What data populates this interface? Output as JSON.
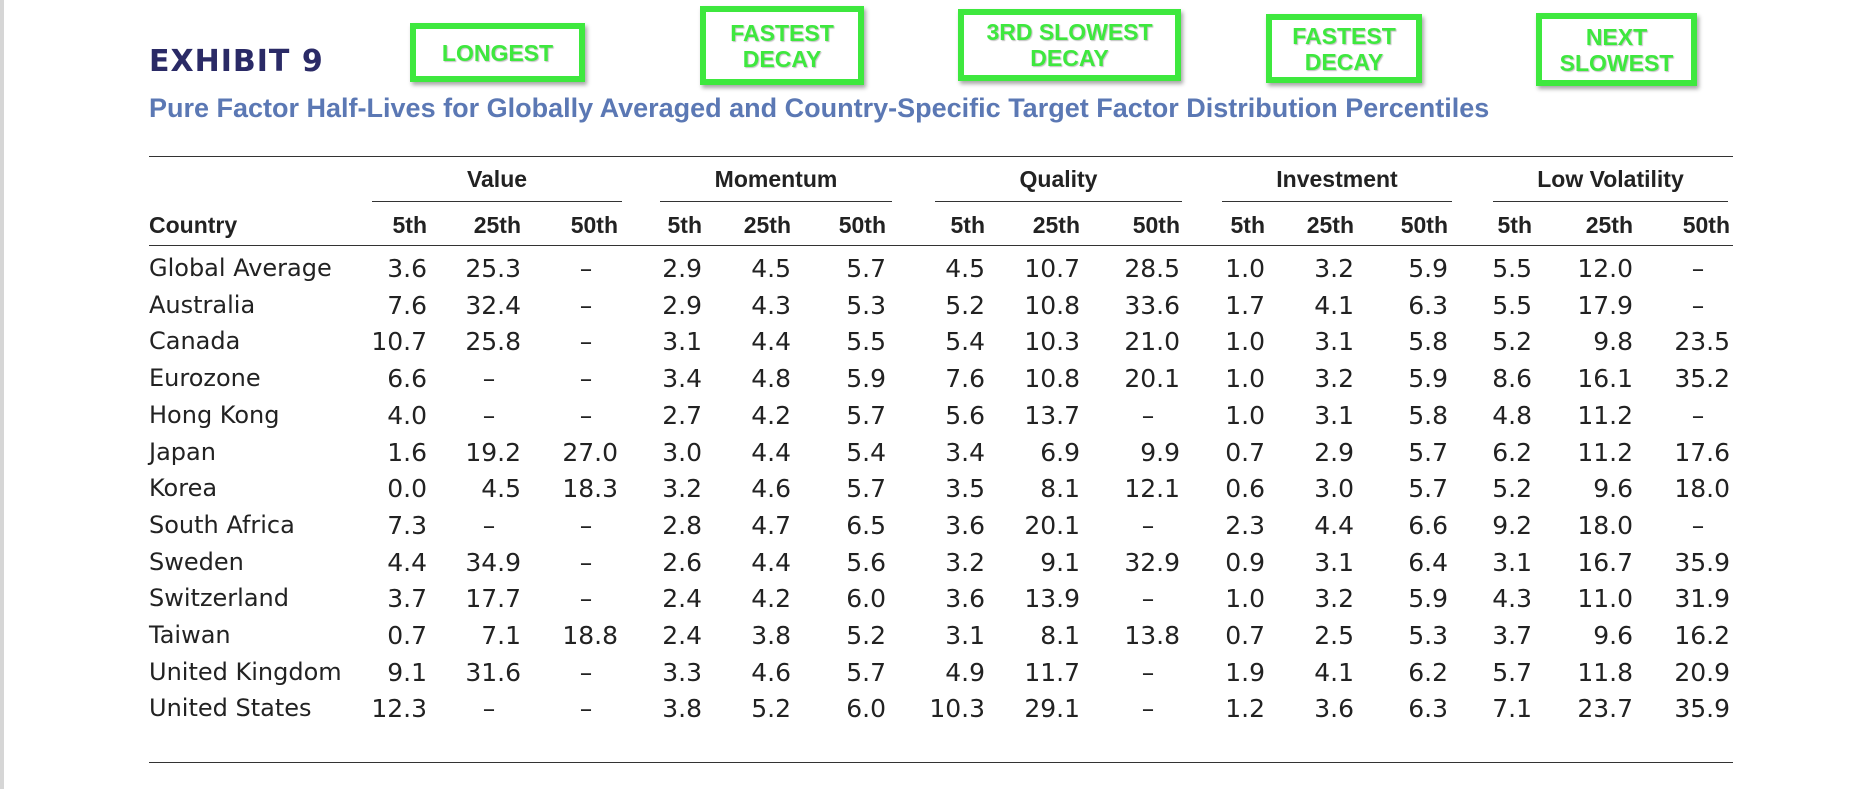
{
  "exhibit_label": "EXHIBIT 9",
  "subtitle": "Pure Factor Half-Lives for Globally Averaged and Country-Specific Target Factor Distribution Percentiles",
  "annotations": [
    {
      "lines": [
        "LONGEST"
      ]
    },
    {
      "lines": [
        "FASTEST",
        "DECAY"
      ]
    },
    {
      "lines": [
        "3RD SLOWEST",
        "DECAY"
      ]
    },
    {
      "lines": [
        "FASTEST",
        "DECAY"
      ]
    },
    {
      "lines": [
        "NEXT",
        "SLOWEST"
      ]
    }
  ],
  "table": {
    "country_header": "Country",
    "groups": [
      "Value",
      "Momentum",
      "Quality",
      "Investment",
      "Low Volatility"
    ],
    "percentiles": [
      "5th",
      "25th",
      "50th"
    ],
    "rows": [
      {
        "country": "Global Average",
        "values": [
          "3.6",
          "25.3",
          "–",
          "2.9",
          "4.5",
          "5.7",
          "4.5",
          "10.7",
          "28.5",
          "1.0",
          "3.2",
          "5.9",
          "5.5",
          "12.0",
          "–"
        ]
      },
      {
        "country": "Australia",
        "values": [
          "7.6",
          "32.4",
          "–",
          "2.9",
          "4.3",
          "5.3",
          "5.2",
          "10.8",
          "33.6",
          "1.7",
          "4.1",
          "6.3",
          "5.5",
          "17.9",
          "–"
        ]
      },
      {
        "country": "Canada",
        "values": [
          "10.7",
          "25.8",
          "–",
          "3.1",
          "4.4",
          "5.5",
          "5.4",
          "10.3",
          "21.0",
          "1.0",
          "3.1",
          "5.8",
          "5.2",
          "9.8",
          "23.5"
        ]
      },
      {
        "country": "Eurozone",
        "values": [
          "6.6",
          "–",
          "–",
          "3.4",
          "4.8",
          "5.9",
          "7.6",
          "10.8",
          "20.1",
          "1.0",
          "3.2",
          "5.9",
          "8.6",
          "16.1",
          "35.2"
        ]
      },
      {
        "country": "Hong Kong",
        "values": [
          "4.0",
          "–",
          "–",
          "2.7",
          "4.2",
          "5.7",
          "5.6",
          "13.7",
          "–",
          "1.0",
          "3.1",
          "5.8",
          "4.8",
          "11.2",
          "–"
        ]
      },
      {
        "country": "Japan",
        "values": [
          "1.6",
          "19.2",
          "27.0",
          "3.0",
          "4.4",
          "5.4",
          "3.4",
          "6.9",
          "9.9",
          "0.7",
          "2.9",
          "5.7",
          "6.2",
          "11.2",
          "17.6"
        ]
      },
      {
        "country": "Korea",
        "values": [
          "0.0",
          "4.5",
          "18.3",
          "3.2",
          "4.6",
          "5.7",
          "3.5",
          "8.1",
          "12.1",
          "0.6",
          "3.0",
          "5.7",
          "5.2",
          "9.6",
          "18.0"
        ]
      },
      {
        "country": "South Africa",
        "values": [
          "7.3",
          "–",
          "–",
          "2.8",
          "4.7",
          "6.5",
          "3.6",
          "20.1",
          "–",
          "2.3",
          "4.4",
          "6.6",
          "9.2",
          "18.0",
          "–"
        ]
      },
      {
        "country": "Sweden",
        "values": [
          "4.4",
          "34.9",
          "–",
          "2.6",
          "4.4",
          "5.6",
          "3.2",
          "9.1",
          "32.9",
          "0.9",
          "3.1",
          "6.4",
          "3.1",
          "16.7",
          "35.9"
        ]
      },
      {
        "country": "Switzerland",
        "values": [
          "3.7",
          "17.7",
          "–",
          "2.4",
          "4.2",
          "6.0",
          "3.6",
          "13.9",
          "–",
          "1.0",
          "3.2",
          "5.9",
          "4.3",
          "11.0",
          "31.9"
        ]
      },
      {
        "country": "Taiwan",
        "values": [
          "0.7",
          "7.1",
          "18.8",
          "2.4",
          "3.8",
          "5.2",
          "3.1",
          "8.1",
          "13.8",
          "0.7",
          "2.5",
          "5.3",
          "3.7",
          "9.6",
          "16.2"
        ]
      },
      {
        "country": "United Kingdom",
        "values": [
          "9.1",
          "31.6",
          "–",
          "3.3",
          "4.6",
          "5.7",
          "4.9",
          "11.7",
          "–",
          "1.9",
          "4.1",
          "6.2",
          "5.7",
          "11.8",
          "20.9"
        ]
      },
      {
        "country": "United States",
        "values": [
          "12.3",
          "–",
          "–",
          "3.8",
          "5.2",
          "6.0",
          "10.3",
          "29.1",
          "–",
          "1.2",
          "3.6",
          "6.3",
          "7.1",
          "23.7",
          "35.9"
        ]
      }
    ]
  }
}
